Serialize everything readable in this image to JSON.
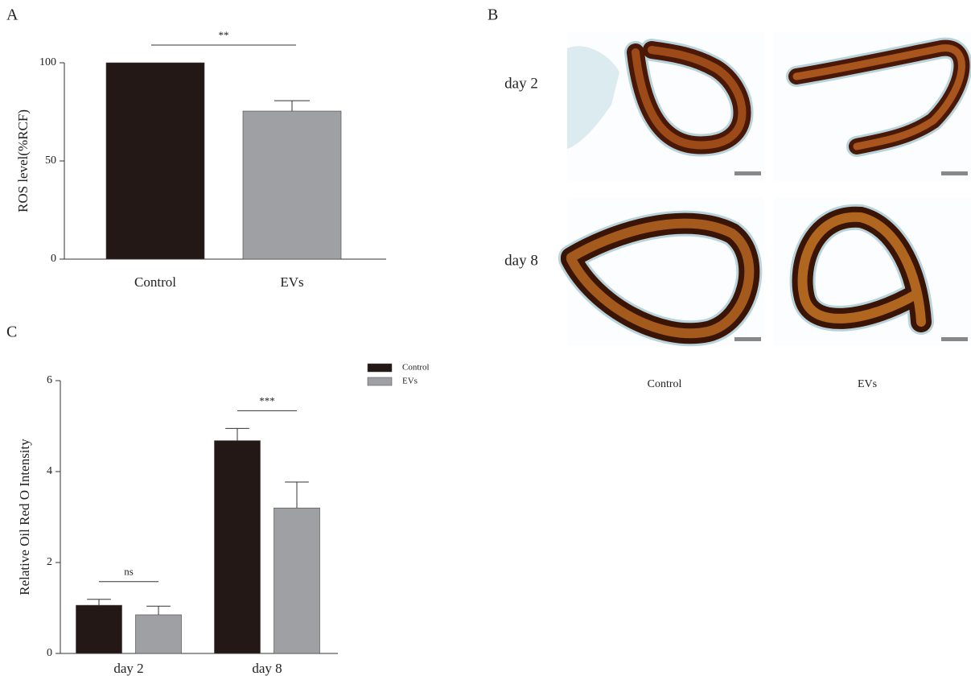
{
  "figure": {
    "panel_labels": [
      "A",
      "B",
      "C"
    ],
    "micrographs": {
      "rows": [
        "day 2",
        "day 8"
      ],
      "columns": [
        "Control",
        "EVs"
      ]
    }
  },
  "chart_data": [
    {
      "type": "bar",
      "ylabel": "ROS level(%RCF)",
      "categories": [
        "Control",
        "EVs"
      ],
      "values": [
        100,
        75.4
      ],
      "errors": [
        null,
        5.3
      ],
      "colors": [
        "#231815",
        "#9fa0a3"
      ],
      "ylim": [
        0,
        100
      ],
      "yticks": [
        0,
        50,
        100
      ],
      "annotations": [
        "**"
      ]
    },
    {
      "type": "grouped_bar",
      "ylabel": "Relative Oil Red O Intensity",
      "categories": [
        "day 2",
        "day 8"
      ],
      "series": [
        {
          "name": "Control",
          "color": "#231815",
          "values": [
            1.06,
            4.68
          ],
          "errors": [
            0.13,
            0.27
          ]
        },
        {
          "name": "EVs",
          "color": "#9fa0a3",
          "values": [
            0.85,
            3.2
          ],
          "errors": [
            0.19,
            0.57
          ]
        }
      ],
      "ylim": [
        0,
        6
      ],
      "yticks": [
        0,
        2,
        4,
        6
      ],
      "annotations": [
        "ns",
        "***"
      ]
    }
  ]
}
